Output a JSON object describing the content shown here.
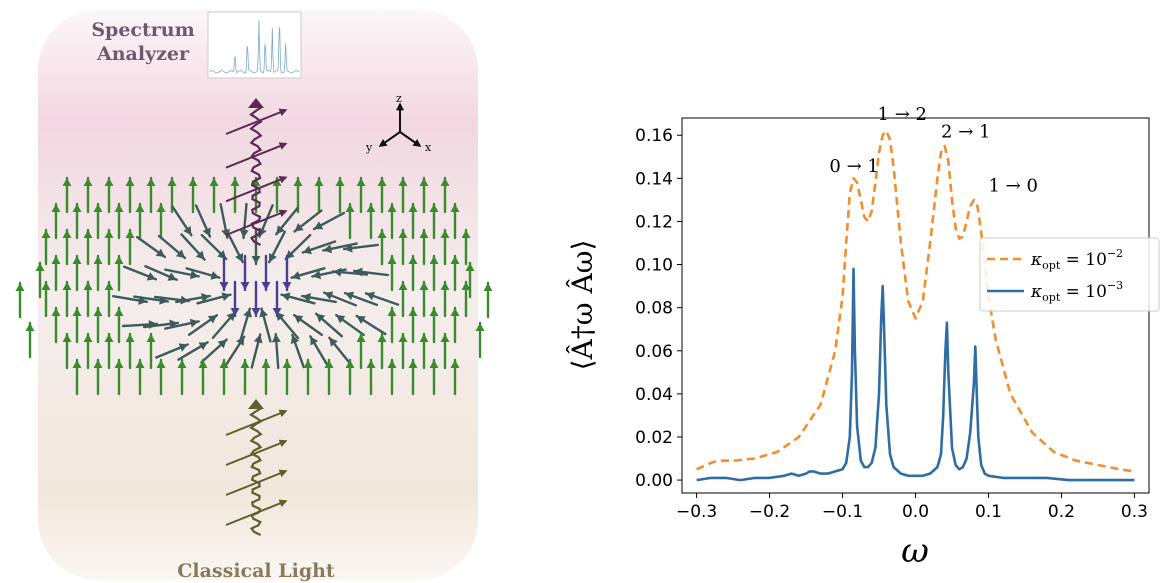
{
  "illustration": {
    "top_label_line1": "Spectrum",
    "top_label_line2": "Analyzer",
    "bottom_label": "Classical Light",
    "axes": {
      "z": "z",
      "y": "y",
      "x": "x"
    },
    "colors": {
      "background_top": "#f1d3de",
      "background_bottom": "#f1e4d8",
      "output_photon": "#5b2a52",
      "input_photon": "#5f5e2f",
      "spins_outer": "#3b8a2e",
      "spins_inner": "#3f5a5a",
      "spins_core": "#4a3f8f",
      "inset_spectrum": "#7fa9c9"
    }
  },
  "chart_data": {
    "type": "line",
    "xlabel": "ω",
    "ylabel": "⟨Â†ω Âω⟩",
    "xlim": [
      -0.32,
      0.32
    ],
    "ylim": [
      -0.006,
      0.168
    ],
    "x_ticks": [
      -0.3,
      -0.2,
      -0.1,
      0.0,
      0.1,
      0.2,
      0.3
    ],
    "x_tick_labels": [
      "−0.3",
      "−0.2",
      "−0.1",
      "0.0",
      "0.1",
      "0.2",
      "0.3"
    ],
    "y_ticks": [
      0.0,
      0.02,
      0.04,
      0.06,
      0.08,
      0.1,
      0.12,
      0.14,
      0.16
    ],
    "y_tick_labels": [
      "0.00",
      "0.02",
      "0.04",
      "0.06",
      "0.08",
      "0.10",
      "0.12",
      "0.14",
      "0.16"
    ],
    "grid": false,
    "legend_position": "center-right",
    "series": [
      {
        "name": "κopt = 10⁻²",
        "name_base": "κ",
        "name_sub": "opt",
        "name_rhs": " = 10",
        "name_sup": "−2",
        "color": "#f28e2b",
        "style": "dashed",
        "x": [
          -0.3,
          -0.28,
          -0.27,
          -0.25,
          -0.22,
          -0.19,
          -0.16,
          -0.13,
          -0.11,
          -0.1,
          -0.095,
          -0.09,
          -0.085,
          -0.08,
          -0.075,
          -0.07,
          -0.065,
          -0.06,
          -0.055,
          -0.05,
          -0.045,
          -0.04,
          -0.035,
          -0.03,
          -0.02,
          -0.01,
          0.0,
          0.01,
          0.02,
          0.03,
          0.035,
          0.04,
          0.045,
          0.05,
          0.055,
          0.06,
          0.065,
          0.07,
          0.075,
          0.08,
          0.085,
          0.09,
          0.095,
          0.1,
          0.11,
          0.13,
          0.16,
          0.19,
          0.22,
          0.25,
          0.28,
          0.3
        ],
        "y": [
          0.005,
          0.008,
          0.009,
          0.009,
          0.01,
          0.013,
          0.02,
          0.035,
          0.06,
          0.085,
          0.11,
          0.133,
          0.14,
          0.138,
          0.13,
          0.122,
          0.12,
          0.125,
          0.138,
          0.152,
          0.16,
          0.162,
          0.158,
          0.145,
          0.11,
          0.083,
          0.075,
          0.083,
          0.11,
          0.14,
          0.152,
          0.155,
          0.148,
          0.13,
          0.117,
          0.112,
          0.113,
          0.12,
          0.127,
          0.13,
          0.127,
          0.115,
          0.1,
          0.085,
          0.065,
          0.04,
          0.022,
          0.013,
          0.009,
          0.007,
          0.005,
          0.004
        ]
      },
      {
        "name": "κopt = 10⁻³",
        "name_base": "κ",
        "name_sub": "opt",
        "name_rhs": " = 10",
        "name_sup": "−3",
        "color": "#2f6da3",
        "style": "solid",
        "x": [
          -0.3,
          -0.28,
          -0.26,
          -0.24,
          -0.22,
          -0.2,
          -0.18,
          -0.17,
          -0.16,
          -0.15,
          -0.145,
          -0.14,
          -0.13,
          -0.12,
          -0.11,
          -0.1,
          -0.095,
          -0.09,
          -0.087,
          -0.085,
          -0.083,
          -0.08,
          -0.075,
          -0.07,
          -0.065,
          -0.06,
          -0.055,
          -0.05,
          -0.047,
          -0.045,
          -0.043,
          -0.04,
          -0.035,
          -0.03,
          -0.02,
          -0.01,
          0.0,
          0.01,
          0.02,
          0.03,
          0.035,
          0.038,
          0.041,
          0.043,
          0.045,
          0.05,
          0.055,
          0.06,
          0.065,
          0.07,
          0.075,
          0.08,
          0.082,
          0.084,
          0.086,
          0.09,
          0.095,
          0.1,
          0.12,
          0.15,
          0.18,
          0.21,
          0.24,
          0.27,
          0.3
        ],
        "y": [
          0.0,
          0.001,
          0.001,
          0.0,
          0.001,
          0.001,
          0.002,
          0.003,
          0.002,
          0.003,
          0.004,
          0.004,
          0.003,
          0.003,
          0.004,
          0.005,
          0.008,
          0.02,
          0.05,
          0.098,
          0.06,
          0.025,
          0.009,
          0.006,
          0.006,
          0.008,
          0.015,
          0.04,
          0.075,
          0.09,
          0.07,
          0.035,
          0.012,
          0.006,
          0.003,
          0.002,
          0.002,
          0.002,
          0.003,
          0.006,
          0.012,
          0.03,
          0.06,
          0.073,
          0.05,
          0.015,
          0.007,
          0.005,
          0.006,
          0.01,
          0.022,
          0.045,
          0.062,
          0.04,
          0.02,
          0.007,
          0.003,
          0.002,
          0.001,
          0.001,
          0.001,
          0.0,
          0.0,
          0.0,
          0.0
        ]
      }
    ],
    "annotations": [
      {
        "text": "0 → 1",
        "x": -0.118,
        "y": 0.143
      },
      {
        "text": "1 → 2",
        "x": -0.052,
        "y": 0.167
      },
      {
        "text": "2 → 1",
        "x": 0.035,
        "y": 0.159
      },
      {
        "text": "1 → 0",
        "x": 0.1,
        "y": 0.134
      }
    ]
  }
}
